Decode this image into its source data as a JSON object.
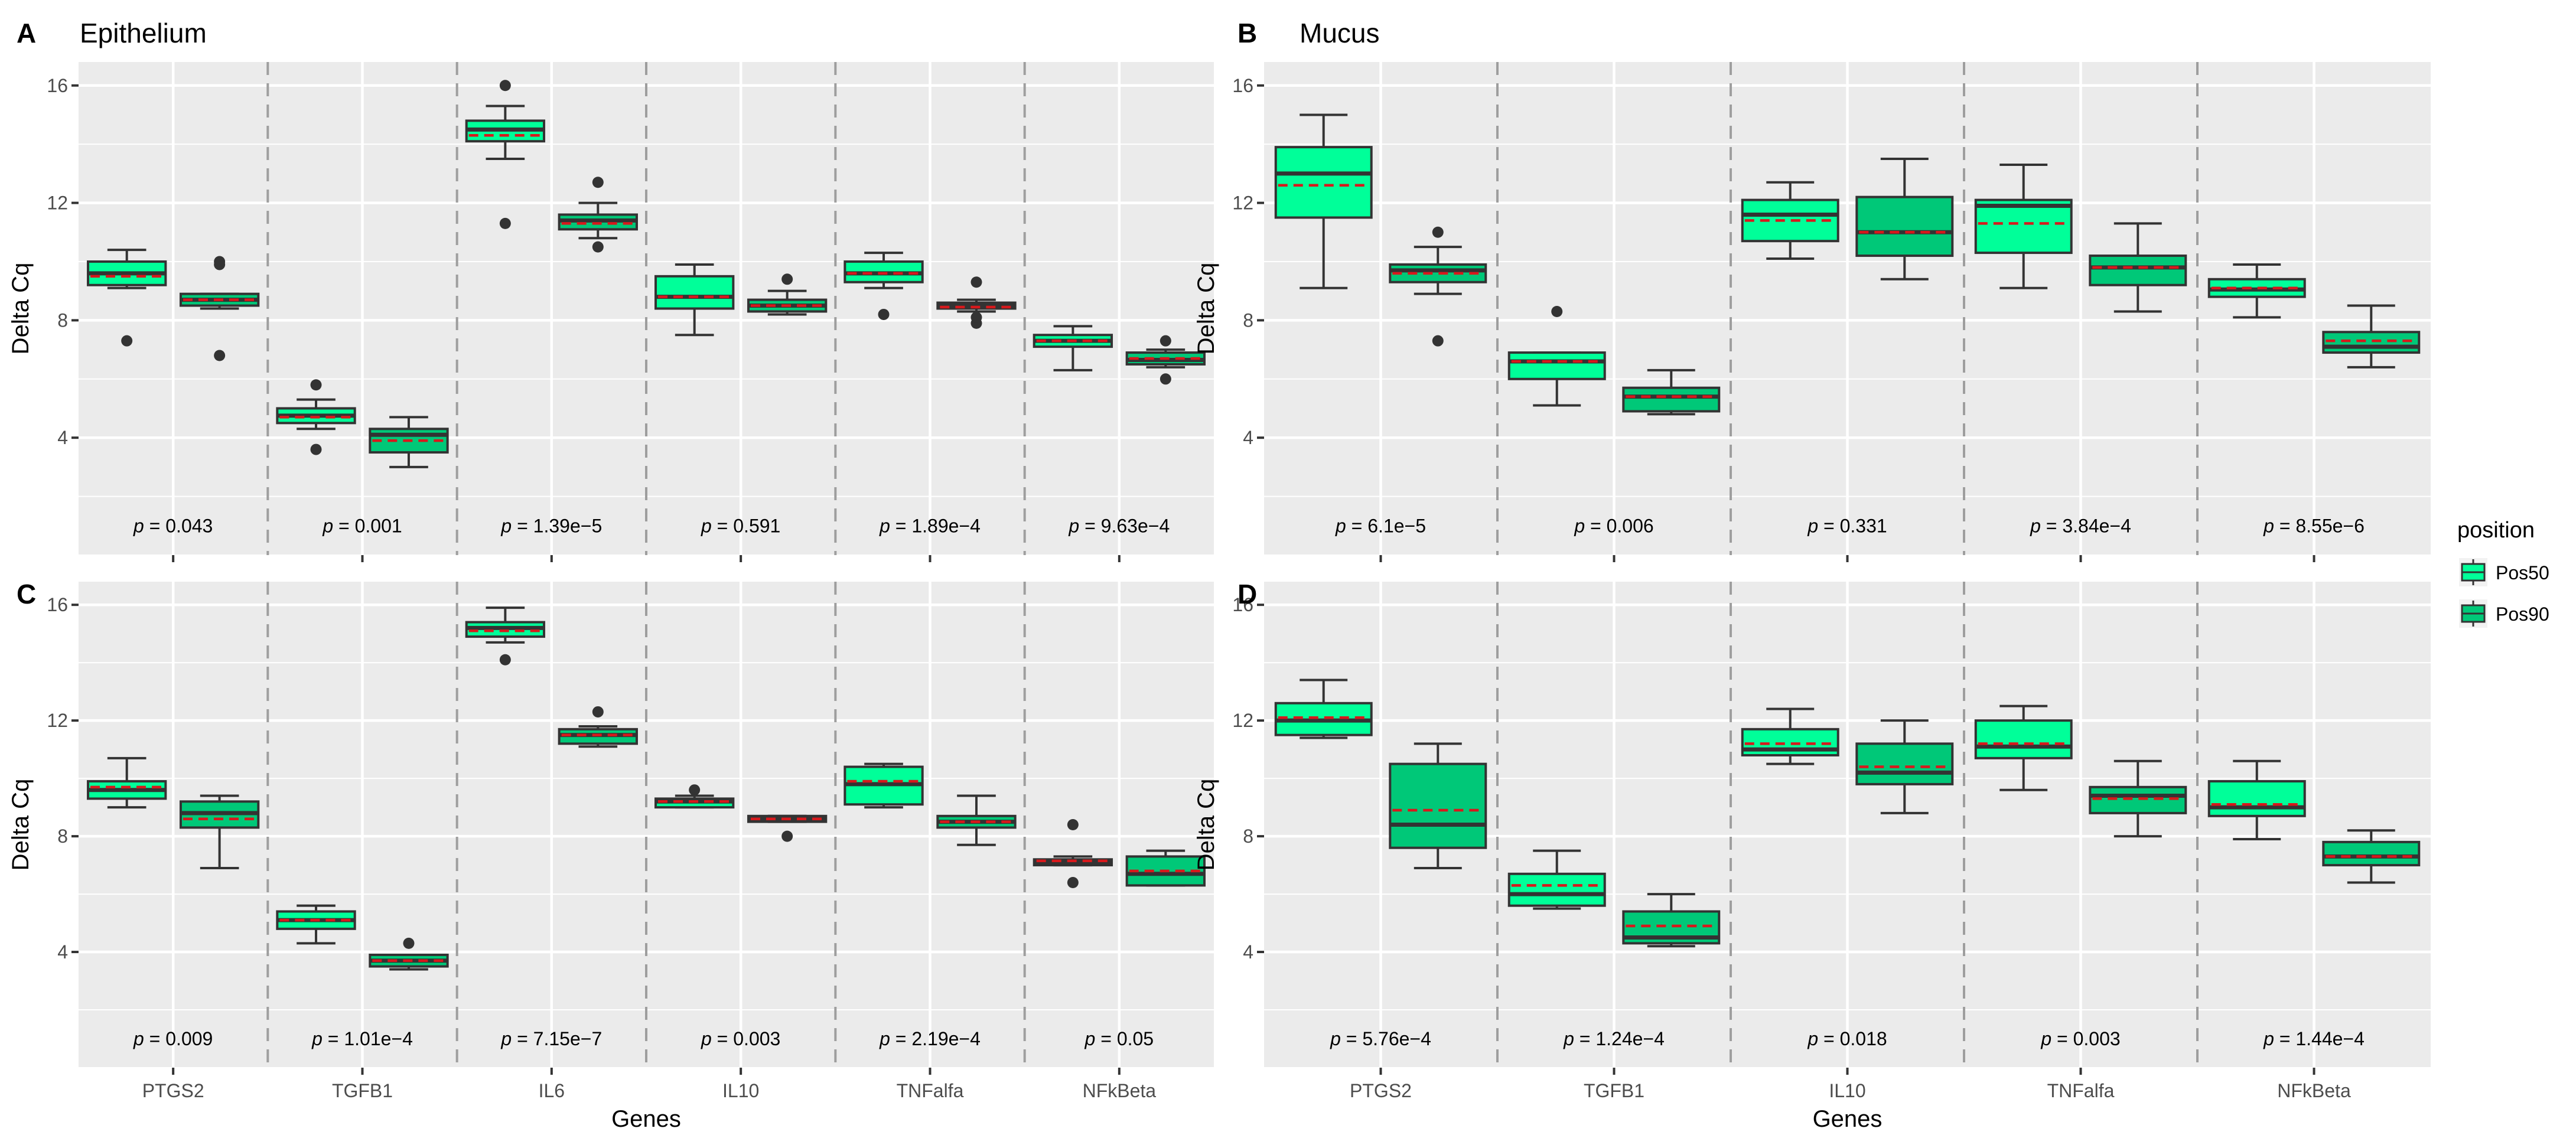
{
  "legend": {
    "title": "position",
    "items": [
      {
        "label": "Pos50",
        "color": "#00ff99"
      },
      {
        "label": "Pos90",
        "color": "#00c878"
      }
    ]
  },
  "style": {
    "median_color": "#333333",
    "mean_color": "#d7191c",
    "outlier_color": "#333333"
  },
  "chart_data": [
    {
      "id": "A",
      "type": "boxplot",
      "title": "Epithelium",
      "ylabel": "Delta Cq",
      "xlabel": "",
      "ylim": [
        0,
        16.8
      ],
      "yticks": [
        4,
        8,
        12,
        16
      ],
      "genes": [
        "PTGS2",
        "TGFB1",
        "IL6",
        "IL10",
        "TNFalfa",
        "NFkBeta"
      ],
      "pvalues": [
        "0.043",
        "0.001",
        "1.39e−5",
        "0.591",
        "1.89e−4",
        "9.63e−4"
      ],
      "boxes": [
        {
          "gene": "PTGS2",
          "group": "Pos50",
          "lo": 9.1,
          "q1": 9.2,
          "median": 9.6,
          "q3": 10.0,
          "hi": 10.4,
          "mean": 9.5,
          "outliers": [
            7.3
          ]
        },
        {
          "gene": "PTGS2",
          "group": "Pos90",
          "lo": 8.4,
          "q1": 8.5,
          "median": 8.7,
          "q3": 8.9,
          "hi": 8.9,
          "mean": 8.7,
          "outliers": [
            6.8,
            9.9,
            10.0
          ]
        },
        {
          "gene": "TGFB1",
          "group": "Pos50",
          "lo": 4.3,
          "q1": 4.5,
          "median": 4.75,
          "q3": 5.0,
          "hi": 5.3,
          "mean": 4.7,
          "outliers": [
            3.6,
            5.8
          ]
        },
        {
          "gene": "TGFB1",
          "group": "Pos90",
          "lo": 3.0,
          "q1": 3.5,
          "median": 4.1,
          "q3": 4.3,
          "hi": 4.7,
          "mean": 3.9,
          "outliers": []
        },
        {
          "gene": "IL6",
          "group": "Pos50",
          "lo": 13.5,
          "q1": 14.1,
          "median": 14.5,
          "q3": 14.8,
          "hi": 15.3,
          "mean": 14.3,
          "outliers": [
            11.3,
            16.0
          ]
        },
        {
          "gene": "IL6",
          "group": "Pos90",
          "lo": 10.8,
          "q1": 11.1,
          "median": 11.4,
          "q3": 11.6,
          "hi": 12.0,
          "mean": 11.3,
          "outliers": [
            10.5,
            12.7
          ]
        },
        {
          "gene": "IL10",
          "group": "Pos50",
          "lo": 7.5,
          "q1": 8.4,
          "median": 8.8,
          "q3": 9.5,
          "hi": 9.9,
          "mean": 8.8,
          "outliers": []
        },
        {
          "gene": "IL10",
          "group": "Pos90",
          "lo": 8.2,
          "q1": 8.3,
          "median": 8.5,
          "q3": 8.7,
          "hi": 9.0,
          "mean": 8.5,
          "outliers": [
            9.4
          ]
        },
        {
          "gene": "TNFalfa",
          "group": "Pos50",
          "lo": 9.1,
          "q1": 9.3,
          "median": 9.6,
          "q3": 10.0,
          "hi": 10.3,
          "mean": 9.6,
          "outliers": [
            8.2
          ]
        },
        {
          "gene": "TNFalfa",
          "group": "Pos90",
          "lo": 8.3,
          "q1": 8.4,
          "median": 8.5,
          "q3": 8.6,
          "hi": 8.7,
          "mean": 8.45,
          "outliers": [
            7.9,
            8.1,
            9.3
          ]
        },
        {
          "gene": "NFkBeta",
          "group": "Pos50",
          "lo": 6.3,
          "q1": 7.1,
          "median": 7.3,
          "q3": 7.5,
          "hi": 7.8,
          "mean": 7.3,
          "outliers": []
        },
        {
          "gene": "NFkBeta",
          "group": "Pos90",
          "lo": 6.4,
          "q1": 6.5,
          "median": 6.65,
          "q3": 6.9,
          "hi": 7.0,
          "mean": 6.7,
          "outliers": [
            6.0,
            7.3
          ]
        }
      ]
    },
    {
      "id": "B",
      "type": "boxplot",
      "title": "Mucus",
      "ylabel": "Delta Cq",
      "xlabel": "",
      "ylim": [
        0,
        16.8
      ],
      "yticks": [
        4,
        8,
        12,
        16
      ],
      "genes": [
        "PTGS2",
        "TGFB1",
        "IL10",
        "TNFalfa",
        "NFkBeta"
      ],
      "pvalues": [
        "6.1e−5",
        "0.006",
        "0.331",
        "3.84e−4",
        "8.55e−6"
      ],
      "boxes": [
        {
          "gene": "PTGS2",
          "group": "Pos50",
          "lo": 9.1,
          "q1": 11.5,
          "median": 13.0,
          "q3": 13.9,
          "hi": 15.0,
          "mean": 12.6,
          "outliers": []
        },
        {
          "gene": "PTGS2",
          "group": "Pos90",
          "lo": 8.9,
          "q1": 9.3,
          "median": 9.7,
          "q3": 9.9,
          "hi": 10.5,
          "mean": 9.6,
          "outliers": [
            7.3,
            11.0
          ]
        },
        {
          "gene": "TGFB1",
          "group": "Pos50",
          "lo": 5.1,
          "q1": 6.0,
          "median": 6.6,
          "q3": 6.9,
          "hi": 6.9,
          "mean": 6.6,
          "outliers": [
            8.3
          ]
        },
        {
          "gene": "TGFB1",
          "group": "Pos90",
          "lo": 4.8,
          "q1": 4.9,
          "median": 5.4,
          "q3": 5.7,
          "hi": 6.3,
          "mean": 5.4,
          "outliers": []
        },
        {
          "gene": "IL10",
          "group": "Pos50",
          "lo": 10.1,
          "q1": 10.7,
          "median": 11.6,
          "q3": 12.1,
          "hi": 12.7,
          "mean": 11.4,
          "outliers": []
        },
        {
          "gene": "IL10",
          "group": "Pos90",
          "lo": 9.4,
          "q1": 10.2,
          "median": 11.0,
          "q3": 12.2,
          "hi": 13.5,
          "mean": 11.0,
          "outliers": []
        },
        {
          "gene": "TNFalfa",
          "group": "Pos50",
          "lo": 9.1,
          "q1": 10.3,
          "median": 11.9,
          "q3": 12.1,
          "hi": 13.3,
          "mean": 11.3,
          "outliers": []
        },
        {
          "gene": "TNFalfa",
          "group": "Pos90",
          "lo": 8.3,
          "q1": 9.2,
          "median": 9.8,
          "q3": 10.2,
          "hi": 11.3,
          "mean": 9.8,
          "outliers": []
        },
        {
          "gene": "NFkBeta",
          "group": "Pos50",
          "lo": 8.1,
          "q1": 8.8,
          "median": 9.05,
          "q3": 9.4,
          "hi": 9.9,
          "mean": 9.1,
          "outliers": []
        },
        {
          "gene": "NFkBeta",
          "group": "Pos90",
          "lo": 6.4,
          "q1": 6.9,
          "median": 7.1,
          "q3": 7.6,
          "hi": 8.5,
          "mean": 7.3,
          "outliers": []
        }
      ]
    },
    {
      "id": "C",
      "type": "boxplot",
      "title": "",
      "ylabel": "Delta Cq",
      "xlabel": "Genes",
      "ylim": [
        0,
        16.8
      ],
      "yticks": [
        4,
        8,
        12,
        16
      ],
      "genes": [
        "PTGS2",
        "TGFB1",
        "IL6",
        "IL10",
        "TNFalfa",
        "NFkBeta"
      ],
      "pvalues": [
        "0.009",
        "1.01e−4",
        "7.15e−7",
        "0.003",
        "2.19e−4",
        "0.05"
      ],
      "boxes": [
        {
          "gene": "PTGS2",
          "group": "Pos50",
          "lo": 9.0,
          "q1": 9.3,
          "median": 9.6,
          "q3": 9.9,
          "hi": 10.7,
          "mean": 9.7,
          "outliers": []
        },
        {
          "gene": "PTGS2",
          "group": "Pos90",
          "lo": 6.9,
          "q1": 8.3,
          "median": 8.8,
          "q3": 9.2,
          "hi": 9.4,
          "mean": 8.6,
          "outliers": []
        },
        {
          "gene": "TGFB1",
          "group": "Pos50",
          "lo": 4.3,
          "q1": 4.8,
          "median": 5.1,
          "q3": 5.4,
          "hi": 5.6,
          "mean": 5.1,
          "outliers": []
        },
        {
          "gene": "TGFB1",
          "group": "Pos90",
          "lo": 3.4,
          "q1": 3.5,
          "median": 3.7,
          "q3": 3.9,
          "hi": 3.9,
          "mean": 3.7,
          "outliers": [
            4.3
          ]
        },
        {
          "gene": "IL6",
          "group": "Pos50",
          "lo": 14.7,
          "q1": 14.9,
          "median": 15.2,
          "q3": 15.4,
          "hi": 15.9,
          "mean": 15.1,
          "outliers": [
            14.1
          ]
        },
        {
          "gene": "IL6",
          "group": "Pos90",
          "lo": 11.1,
          "q1": 11.2,
          "median": 11.5,
          "q3": 11.7,
          "hi": 11.8,
          "mean": 11.5,
          "outliers": [
            12.3
          ]
        },
        {
          "gene": "IL10",
          "group": "Pos50",
          "lo": 9.0,
          "q1": 9.0,
          "median": 9.2,
          "q3": 9.3,
          "hi": 9.4,
          "mean": 9.2,
          "outliers": [
            9.6
          ]
        },
        {
          "gene": "IL10",
          "group": "Pos90",
          "lo": 8.5,
          "q1": 8.5,
          "median": 8.6,
          "q3": 8.7,
          "hi": 8.7,
          "mean": 8.6,
          "outliers": [
            8.0
          ]
        },
        {
          "gene": "TNFalfa",
          "group": "Pos50",
          "lo": 9.0,
          "q1": 9.1,
          "median": 9.8,
          "q3": 10.4,
          "hi": 10.5,
          "mean": 9.9,
          "outliers": []
        },
        {
          "gene": "TNFalfa",
          "group": "Pos90",
          "lo": 7.7,
          "q1": 8.3,
          "median": 8.5,
          "q3": 8.7,
          "hi": 9.4,
          "mean": 8.5,
          "outliers": []
        },
        {
          "gene": "NFkBeta",
          "group": "Pos50",
          "lo": 7.0,
          "q1": 7.0,
          "median": 7.1,
          "q3": 7.2,
          "hi": 7.3,
          "mean": 7.15,
          "outliers": [
            6.4,
            8.4
          ]
        },
        {
          "gene": "NFkBeta",
          "group": "Pos90",
          "lo": 6.3,
          "q1": 6.3,
          "median": 6.7,
          "q3": 7.3,
          "hi": 7.5,
          "mean": 6.8,
          "outliers": []
        }
      ]
    },
    {
      "id": "D",
      "type": "boxplot",
      "title": "",
      "ylabel": "Delta Cq",
      "xlabel": "Genes",
      "ylim": [
        0,
        16.8
      ],
      "yticks": [
        4,
        8,
        12,
        16
      ],
      "genes": [
        "PTGS2",
        "TGFB1",
        "IL10",
        "TNFalfa",
        "NFkBeta"
      ],
      "pvalues": [
        "5.76e−4",
        "1.24e−4",
        "0.018",
        "0.003",
        "1.44e−4"
      ],
      "boxes": [
        {
          "gene": "PTGS2",
          "group": "Pos50",
          "lo": 11.4,
          "q1": 11.5,
          "median": 12.0,
          "q3": 12.6,
          "hi": 13.4,
          "mean": 12.1,
          "outliers": []
        },
        {
          "gene": "PTGS2",
          "group": "Pos90",
          "lo": 6.9,
          "q1": 7.6,
          "median": 8.4,
          "q3": 10.5,
          "hi": 11.2,
          "mean": 8.9,
          "outliers": []
        },
        {
          "gene": "TGFB1",
          "group": "Pos50",
          "lo": 5.5,
          "q1": 5.6,
          "median": 6.0,
          "q3": 6.7,
          "hi": 7.5,
          "mean": 6.3,
          "outliers": []
        },
        {
          "gene": "TGFB1",
          "group": "Pos90",
          "lo": 4.2,
          "q1": 4.3,
          "median": 4.5,
          "q3": 5.4,
          "hi": 6.0,
          "mean": 4.9,
          "outliers": []
        },
        {
          "gene": "IL10",
          "group": "Pos50",
          "lo": 10.5,
          "q1": 10.8,
          "median": 11.0,
          "q3": 11.7,
          "hi": 12.4,
          "mean": 11.2,
          "outliers": []
        },
        {
          "gene": "IL10",
          "group": "Pos90",
          "lo": 8.8,
          "q1": 9.8,
          "median": 10.2,
          "q3": 11.2,
          "hi": 12.0,
          "mean": 10.4,
          "outliers": []
        },
        {
          "gene": "TNFalfa",
          "group": "Pos50",
          "lo": 9.6,
          "q1": 10.7,
          "median": 11.1,
          "q3": 12.0,
          "hi": 12.5,
          "mean": 11.2,
          "outliers": []
        },
        {
          "gene": "TNFalfa",
          "group": "Pos90",
          "lo": 8.0,
          "q1": 8.8,
          "median": 9.4,
          "q3": 9.7,
          "hi": 10.6,
          "mean": 9.3,
          "outliers": []
        },
        {
          "gene": "NFkBeta",
          "group": "Pos50",
          "lo": 7.9,
          "q1": 8.7,
          "median": 9.0,
          "q3": 9.9,
          "hi": 10.6,
          "mean": 9.1,
          "outliers": []
        },
        {
          "gene": "NFkBeta",
          "group": "Pos90",
          "lo": 6.4,
          "q1": 7.0,
          "median": 7.3,
          "q3": 7.8,
          "hi": 8.2,
          "mean": 7.3,
          "outliers": []
        }
      ]
    }
  ]
}
